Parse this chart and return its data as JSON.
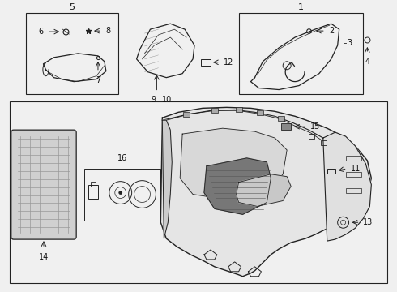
{
  "bg_color": "#f0f0f0",
  "line_color": "#222222",
  "text_color": "#111111",
  "fig_width": 4.9,
  "fig_height": 3.6,
  "dpi": 100
}
